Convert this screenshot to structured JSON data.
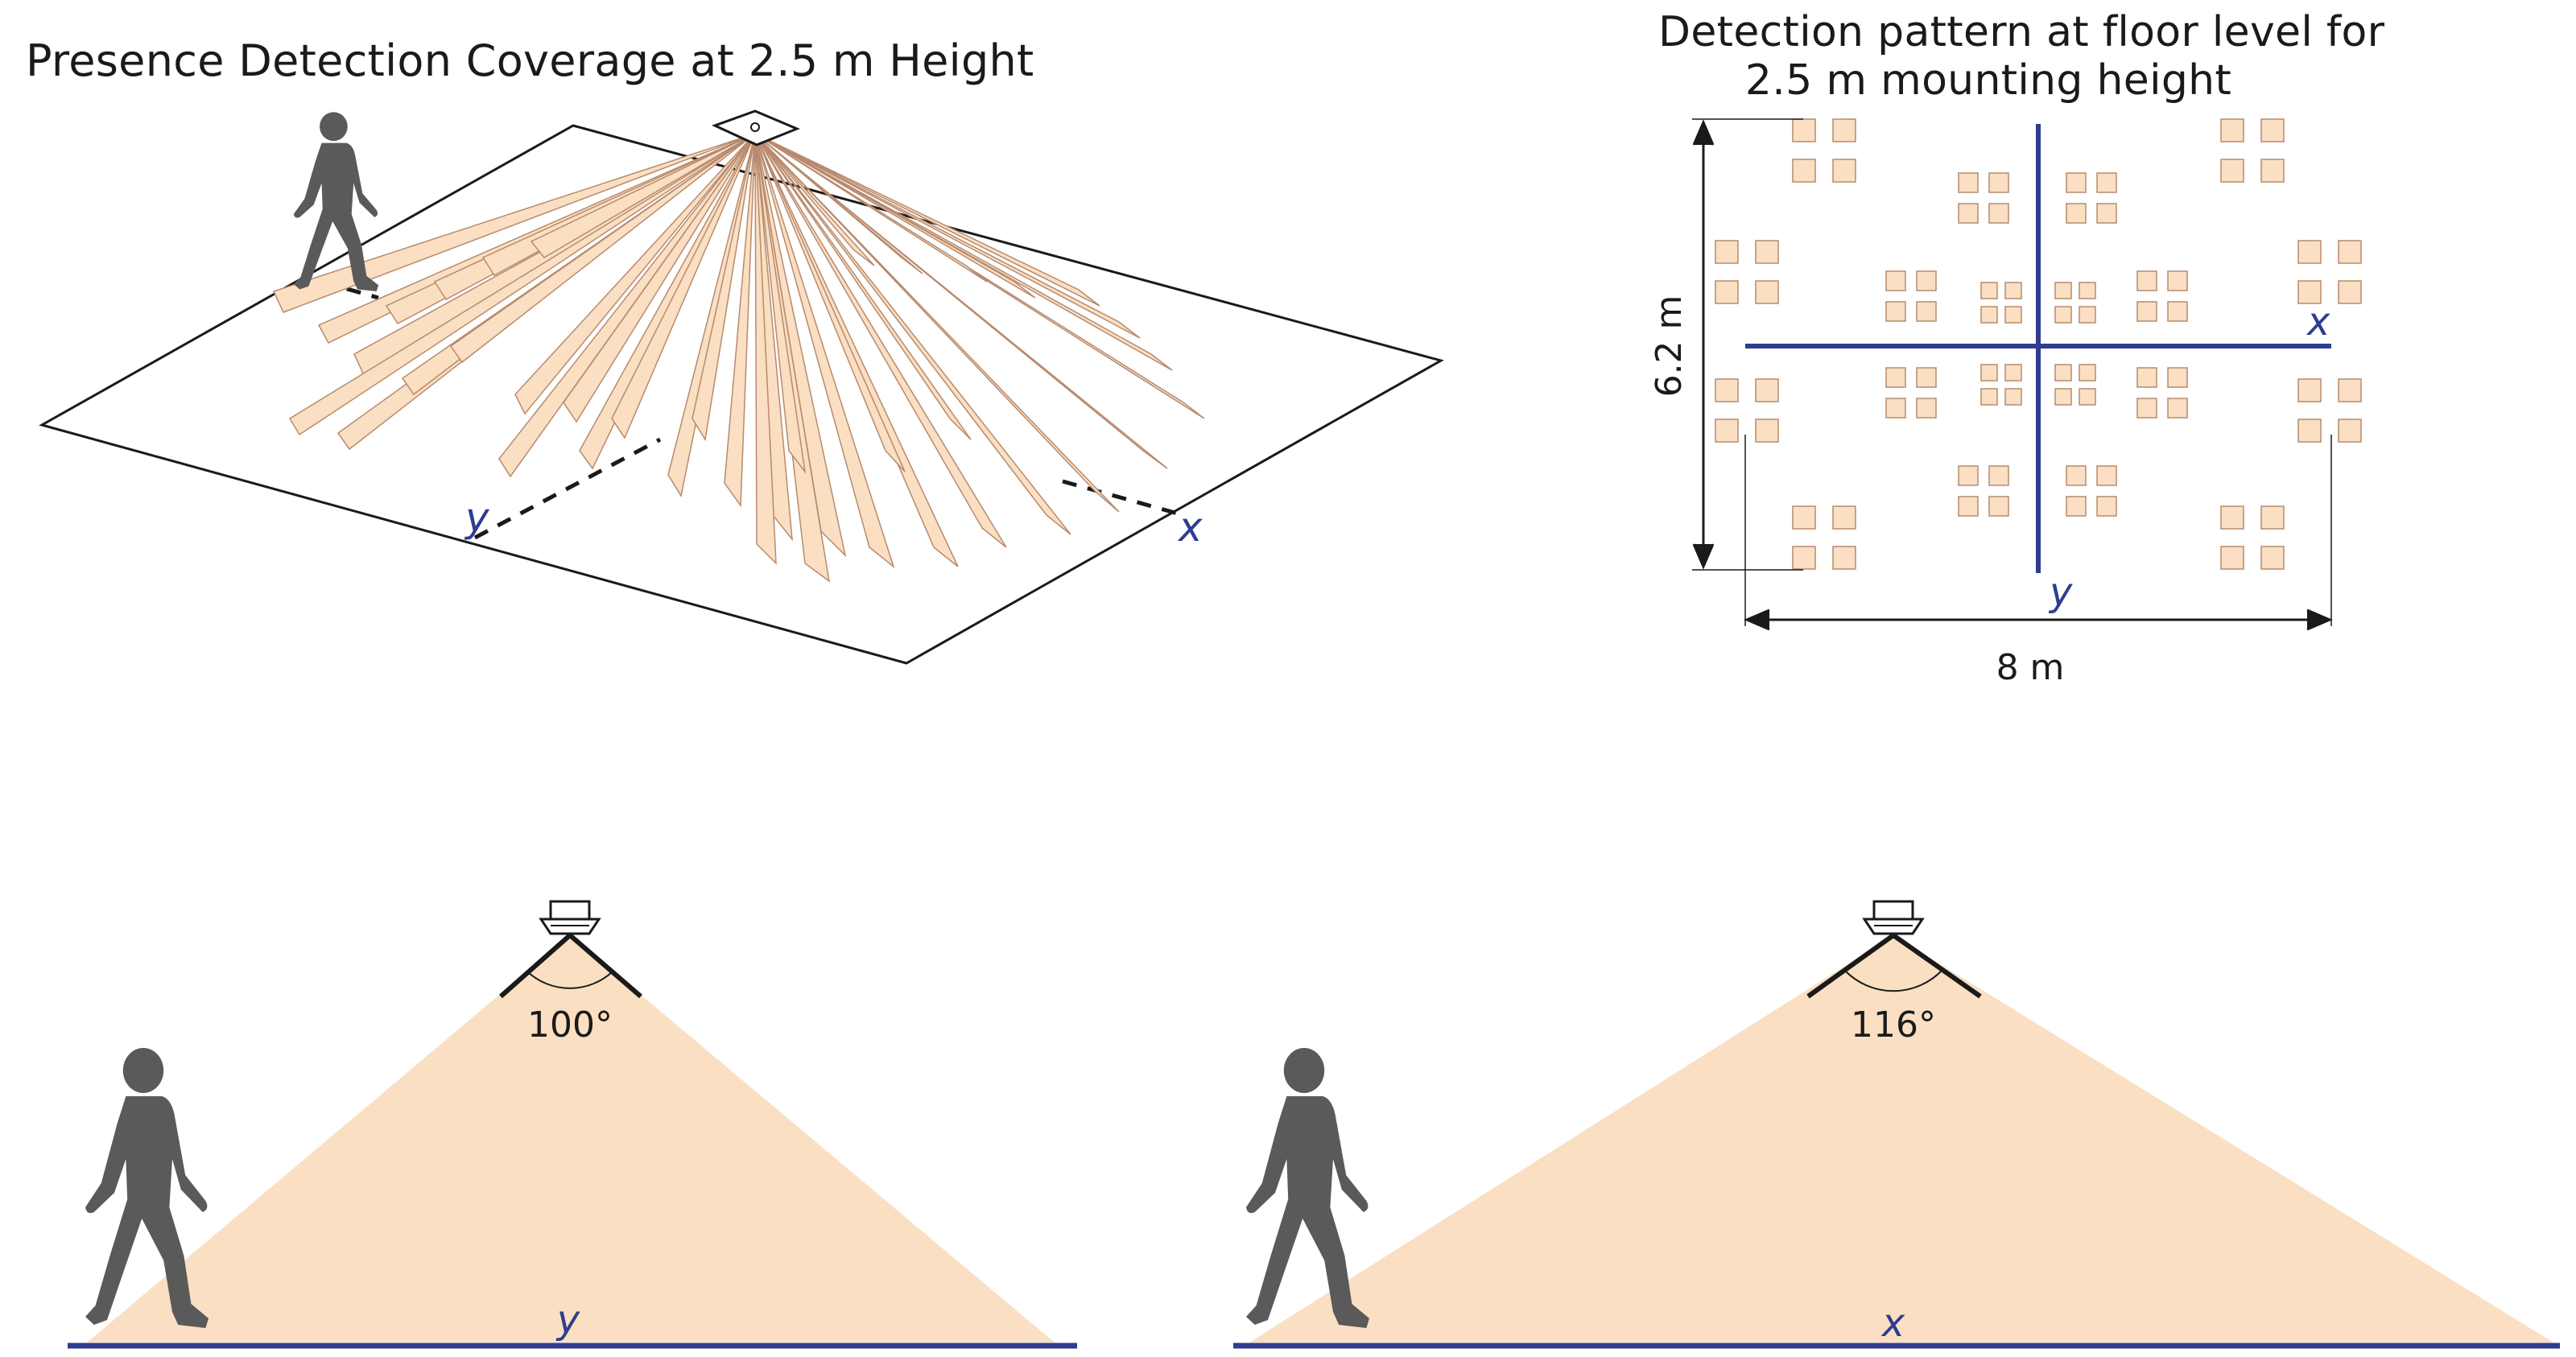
{
  "colors": {
    "beam": "#fadfc2",
    "beam_stroke": "#b88a6e",
    "axis": "#2e3d8f",
    "line": "#1a1a1a",
    "person": "#5a5a5a"
  },
  "perspective_view": {
    "title": "Presence Detection Coverage at 2.5 m Height",
    "axis_y_label": "y",
    "axis_x_label": "x",
    "icons": [
      "person-walking-icon",
      "ceiling-sensor-icon"
    ]
  },
  "floor_pattern": {
    "title_line1": "Detection pattern at floor level for",
    "title_line2": "2.5 m mounting height",
    "axis_x_label": "x",
    "axis_y_label": "y",
    "height_dimension": "6.2 m",
    "width_dimension": "8 m"
  },
  "side_view_y": {
    "angle_label": "100°",
    "axis_label": "y",
    "icons": [
      "person-walking-icon",
      "ceiling-sensor-icon"
    ]
  },
  "side_view_x": {
    "angle_label": "116°",
    "axis_label": "x",
    "icons": [
      "person-walking-icon",
      "ceiling-sensor-icon"
    ]
  }
}
